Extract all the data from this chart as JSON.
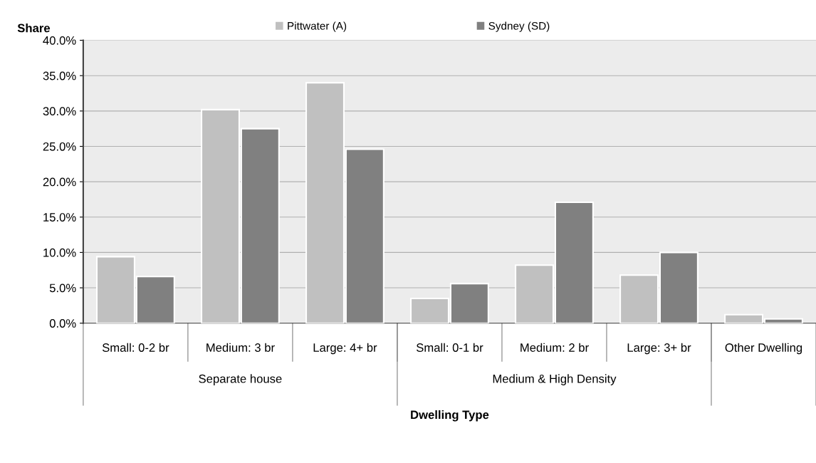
{
  "chart_data": {
    "type": "bar",
    "xlabel": "Dwelling Type",
    "ylabel": "Share",
    "categories": [
      "Small: 0-2 br",
      "Medium: 3 br",
      "Large: 4+ br",
      "Small: 0-1 br",
      "Medium: 2 br",
      "Large: 3+ br",
      "Other Dwelling"
    ],
    "series": [
      {
        "name": "Pittwater (A)",
        "color": "#c0c0c0",
        "values": [
          9.4,
          30.2,
          34.0,
          3.5,
          8.2,
          6.8,
          1.2
        ]
      },
      {
        "name": "Sydney (SD)",
        "color": "#808080",
        "values": [
          6.6,
          27.5,
          24.6,
          5.6,
          17.1,
          10.0,
          0.6
        ]
      }
    ],
    "ylim": [
      0,
      40
    ],
    "yticks": [
      {
        "value": 0,
        "label": "0.0%"
      },
      {
        "value": 5,
        "label": "5.0%"
      },
      {
        "value": 10,
        "label": "10.0%"
      },
      {
        "value": 15,
        "label": "15.0%"
      },
      {
        "value": 20,
        "label": "20.0%"
      },
      {
        "value": 25,
        "label": "25.0%"
      },
      {
        "value": 30,
        "label": "30.0%"
      },
      {
        "value": 35,
        "label": "35.0%"
      },
      {
        "value": 40,
        "label": "40.0%"
      }
    ],
    "annotations": [
      "Separate house",
      "Medium & High Density"
    ],
    "grid": "y",
    "legend": "top"
  }
}
